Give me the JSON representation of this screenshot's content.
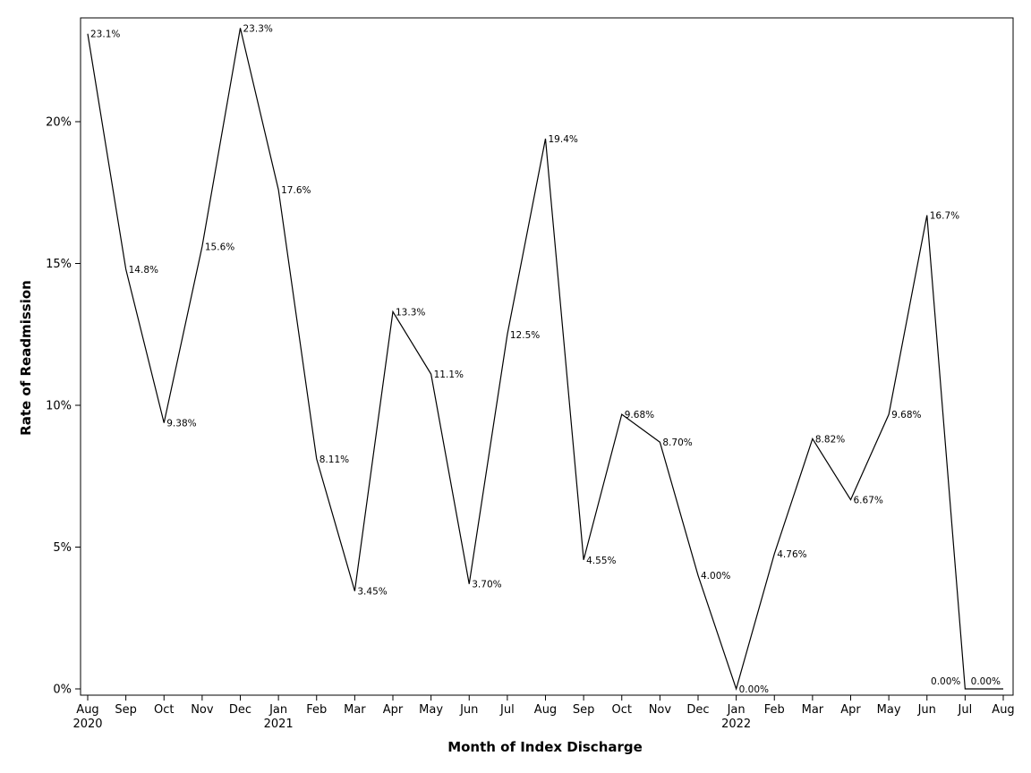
{
  "chart_data": {
    "type": "line",
    "title": "",
    "xlabel": "Month of Index Discharge",
    "ylabel": "Rate of Readmission",
    "ylim": [
      0,
      23.3
    ],
    "yticks": [
      0,
      5,
      10,
      15,
      20
    ],
    "ytick_labels": [
      "0%",
      "5%",
      "10%",
      "15%",
      "20%"
    ],
    "grid": false,
    "legend": "none",
    "line_color": "#000000",
    "categories": [
      "Aug",
      "Sep",
      "Oct",
      "Nov",
      "Dec",
      "Jan",
      "Feb",
      "Mar",
      "Apr",
      "May",
      "Jun",
      "Jul",
      "Aug",
      "Sep",
      "Oct",
      "Nov",
      "Dec",
      "Jan",
      "Feb",
      "Mar",
      "Apr",
      "May",
      "Jun",
      "Jul",
      "Aug"
    ],
    "year_labels": [
      {
        "index": 0,
        "text": "2020"
      },
      {
        "index": 5,
        "text": "2021"
      },
      {
        "index": 17,
        "text": "2022"
      }
    ],
    "values": [
      23.1,
      14.8,
      9.38,
      15.6,
      23.3,
      17.6,
      8.11,
      3.45,
      13.3,
      11.1,
      3.7,
      12.5,
      19.4,
      4.55,
      9.68,
      8.7,
      4.0,
      0.0,
      4.76,
      8.82,
      6.67,
      9.68,
      16.7,
      0.0,
      0.0
    ],
    "value_labels": [
      "23.1%",
      "14.8%",
      "9.38%",
      "15.6%",
      "23.3%",
      "17.6%",
      "8.11%",
      "3.45%",
      "13.3%",
      "11.1%",
      "3.70%",
      "12.5%",
      "19.4%",
      "4.55%",
      "9.68%",
      "8.70%",
      "4.00%",
      "0.00%",
      "4.76%",
      "8.82%",
      "6.67%",
      "9.68%",
      "16.7%",
      "0.00%",
      "0.00%"
    ]
  }
}
